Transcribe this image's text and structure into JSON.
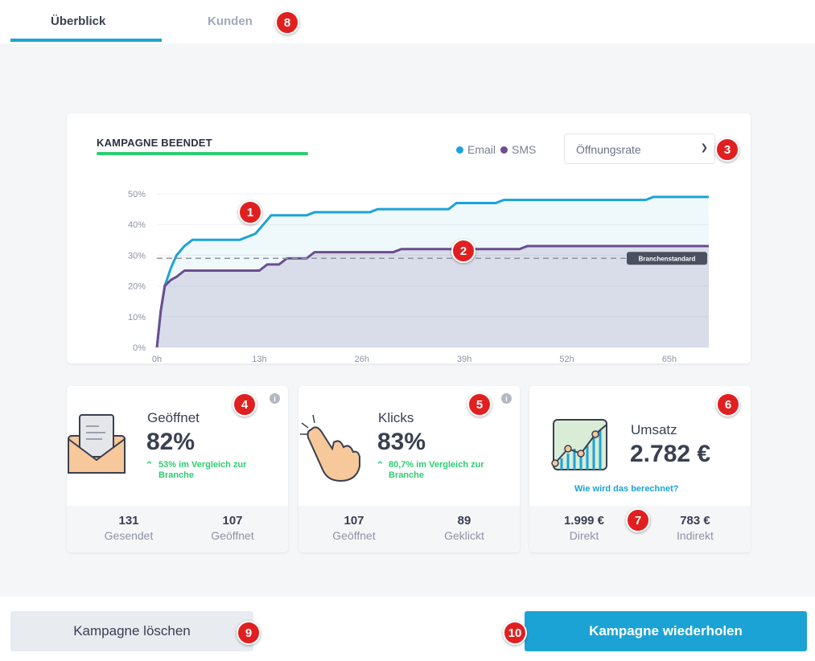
{
  "tabs": {
    "overview": "Überblick",
    "customers": "Kunden"
  },
  "chart_card": {
    "title": "KAMPAGNE BEENDET",
    "legend_email": "Email",
    "legend_sms": "SMS",
    "metric_select": "Öffnungsrate",
    "benchmark_label": "Branchenstandard"
  },
  "colors": {
    "email": "#1ca3d6",
    "sms": "#6c4d8f",
    "accent_green": "#2ecc71",
    "primary": "#1ca3d6"
  },
  "chart_data": {
    "type": "area",
    "title": "KAMPAGNE BEENDET",
    "xlabel": "",
    "ylabel": "",
    "xlim": [
      0,
      70
    ],
    "ylim": [
      0,
      50
    ],
    "x_ticks": [
      0,
      13,
      26,
      39,
      52,
      65
    ],
    "x_tick_labels": [
      "0h",
      "13h",
      "26h",
      "39h",
      "52h",
      "65h"
    ],
    "y_ticks": [
      0,
      10,
      20,
      30,
      40,
      50
    ],
    "y_tick_labels": [
      "0%",
      "10%",
      "20%",
      "30%",
      "40%",
      "50%"
    ],
    "benchmark": {
      "label": "Branchenstandard",
      "value": 29
    },
    "series": [
      {
        "name": "Email",
        "points": [
          [
            0,
            0
          ],
          [
            0.5,
            12
          ],
          [
            1,
            20
          ],
          [
            1.8,
            26
          ],
          [
            2.5,
            30
          ],
          [
            3.5,
            33
          ],
          [
            4.5,
            35
          ],
          [
            10.5,
            35
          ],
          [
            11.5,
            36
          ],
          [
            12.5,
            37
          ],
          [
            13.5,
            40
          ],
          [
            14.5,
            43
          ],
          [
            19,
            43
          ],
          [
            20,
            44
          ],
          [
            27,
            44
          ],
          [
            28,
            45
          ],
          [
            37,
            45
          ],
          [
            38,
            47
          ],
          [
            43,
            47
          ],
          [
            44,
            48
          ],
          [
            62,
            48
          ],
          [
            63,
            49
          ],
          [
            70,
            49
          ]
        ]
      },
      {
        "name": "SMS",
        "points": [
          [
            0,
            0
          ],
          [
            0.5,
            12
          ],
          [
            1,
            20
          ],
          [
            1.8,
            22
          ],
          [
            2.5,
            23
          ],
          [
            3.5,
            25
          ],
          [
            13,
            25
          ],
          [
            14,
            27
          ],
          [
            15.5,
            27
          ],
          [
            16.5,
            29
          ],
          [
            19,
            29
          ],
          [
            20,
            31
          ],
          [
            30,
            31
          ],
          [
            31,
            32
          ],
          [
            46,
            32
          ],
          [
            47,
            33
          ],
          [
            70,
            33
          ]
        ]
      }
    ]
  },
  "cards": {
    "opened": {
      "label": "Geöffnet",
      "value": "82%",
      "comparison_line1": "53% im Vergleich zur",
      "comparison_line2": "Branche",
      "foot_left_num": "131",
      "foot_left_label": "Gesendet",
      "foot_right_num": "107",
      "foot_right_label": "Geöffnet"
    },
    "clicks": {
      "label": "Klicks",
      "value": "83%",
      "comparison_line1": "80,7% im Vergleich zur",
      "comparison_line2": "Branche",
      "foot_left_num": "107",
      "foot_left_label": "Geöffnet",
      "foot_right_num": "89",
      "foot_right_label": "Geklickt"
    },
    "revenue": {
      "label": "Umsatz",
      "value": "2.782 €",
      "link": "Wie wird das berechnet?",
      "foot_left_num": "1.999 €",
      "foot_left_label": "Direkt",
      "foot_right_num": "783 €",
      "foot_right_label": "Indirekt"
    }
  },
  "info_icon": "i",
  "up_arrow": "⌃",
  "actions": {
    "delete": "Kampagne löschen",
    "repeat": "Kampagne wiederholen"
  },
  "markers": [
    "1",
    "2",
    "3",
    "4",
    "5",
    "6",
    "7",
    "8",
    "9",
    "10"
  ]
}
